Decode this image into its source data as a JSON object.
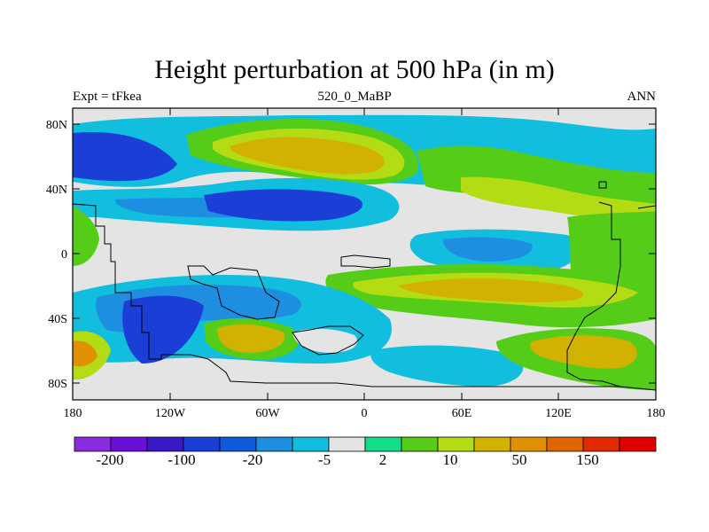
{
  "title": "Height perturbation at 500 hPa (in m)",
  "subtitle_left": "Expt = tFkea",
  "subtitle_center": "520_0_MaBP",
  "subtitle_right": "ANN",
  "axes": {
    "lat_ticks": [
      "80N",
      "40N",
      "0",
      "40S",
      "80S"
    ],
    "lon_ticks": [
      "180",
      "120W",
      "60W",
      "0",
      "60E",
      "120E",
      "180"
    ]
  },
  "colors": {
    "palette": [
      "#8a2be2",
      "#6a0fd8",
      "#3a18c8",
      "#1b3fd6",
      "#0f5ad8",
      "#1e8fe0",
      "#11bede",
      "#e4e4e4",
      "#12dd88",
      "#55cc18",
      "#b4dc14",
      "#d2b200",
      "#e09000",
      "#e06400",
      "#e02a00",
      "#e00000"
    ],
    "neutral": "#e4e4e4",
    "coastline": "#000000"
  },
  "colorbar": {
    "labels": [
      "-200",
      "-100",
      "-20",
      "-5",
      "2",
      "10",
      "50",
      "150"
    ]
  },
  "chart_data": {
    "type": "heatmap",
    "title": "Height perturbation at 500 hPa (in m)",
    "variable": "Height perturbation at 500 hPa",
    "units": "m",
    "xlim": [
      -180,
      180
    ],
    "ylim": [
      -90,
      90
    ],
    "levels": [
      -200,
      -100,
      -20,
      -5,
      2,
      10,
      50,
      150
    ],
    "regions": [
      {
        "lon": -25,
        "lat": 58,
        "value": 35
      },
      {
        "lon": 85,
        "lat": 52,
        "value": 10
      },
      {
        "lon": 60,
        "lat": 32,
        "value": 10
      },
      {
        "lon": -155,
        "lat": 55,
        "value": -40
      },
      {
        "lon": -110,
        "lat": 38,
        "value": -10
      },
      {
        "lon": -65,
        "lat": 32,
        "value": -40
      },
      {
        "lon": 45,
        "lat": 10,
        "value": -8
      },
      {
        "lon": 150,
        "lat": 18,
        "value": 6
      },
      {
        "lon": -120,
        "lat": -48,
        "value": -40
      },
      {
        "lon": -80,
        "lat": -52,
        "value": 30
      },
      {
        "lon": 75,
        "lat": -25,
        "value": 12
      },
      {
        "lon": 120,
        "lat": -62,
        "value": 25
      },
      {
        "lon": -160,
        "lat": -62,
        "value": 15
      }
    ]
  }
}
